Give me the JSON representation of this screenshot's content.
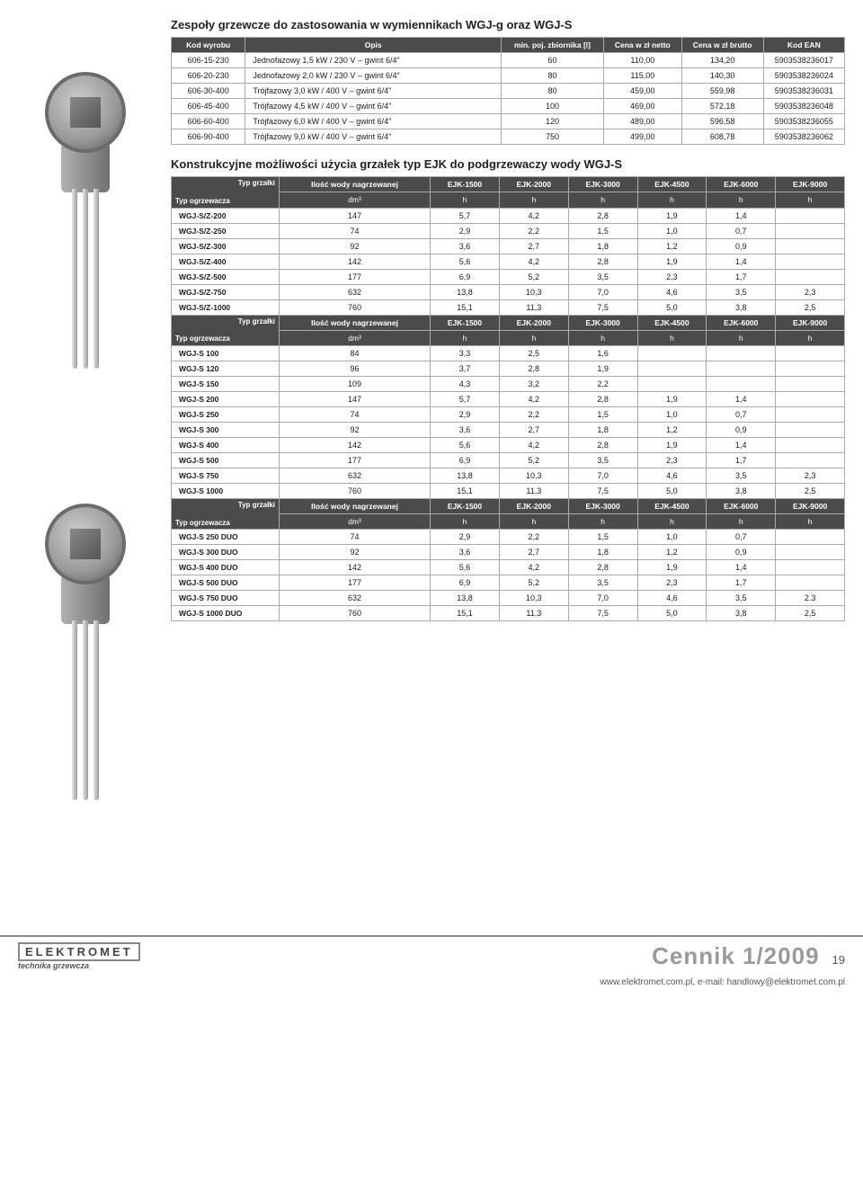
{
  "title": "Zespoły grzewcze do zastosowania w wymiennikach WGJ-g oraz WGJ-S",
  "tbl1": {
    "headers": [
      "Kod wyrobu",
      "Opis",
      "min. poj. zbiornika [l]",
      "Cena w zł netto",
      "Cena w zł brutto",
      "Kod EAN"
    ],
    "rows": [
      [
        "606-15-230",
        "Jednofazowy 1,5 kW / 230 V – gwint 6/4\"",
        "60",
        "110,00",
        "134,20",
        "5903538236017"
      ],
      [
        "606-20-230",
        "Jednofazowy 2,0 kW / 230 V – gwint 6/4\"",
        "80",
        "115,00",
        "140,30",
        "5903538236024"
      ],
      [
        "606-30-400",
        "Trójfazowy 3,0 kW / 400 V – gwint 6/4\"",
        "80",
        "459,00",
        "559,98",
        "5903538236031"
      ],
      [
        "606-45-400",
        "Trójfazowy 4,5 kW / 400 V – gwint 6/4\"",
        "100",
        "469,00",
        "572,18",
        "5903538236048"
      ],
      [
        "606-60-400",
        "Trójfazowy 6,0 kW / 400 V – gwint 6/4\"",
        "120",
        "489,00",
        "596,58",
        "5903538236055"
      ],
      [
        "606-90-400",
        "Trójfazowy 9,0 kW / 400 V – gwint 6/4\"",
        "750",
        "499,00",
        "608,78",
        "5903538236062"
      ]
    ]
  },
  "title2": "Konstrukcyjne możliwości użycia grzałek typ EJK do podgrzewaczy wody WGJ-S",
  "ejk_header": {
    "corner_top": "Typ grzałki",
    "corner_bot": "Typ ogrzewacza",
    "sub1": "Ilość wody nagrzewanej",
    "sub2": "dm³",
    "cols": [
      "EJK-1500",
      "EJK-2000",
      "EJK-3000",
      "EJK-4500",
      "EJK-6000",
      "EJK-9000"
    ],
    "unit": "h"
  },
  "group1": [
    [
      "WGJ-S/Z-200",
      "147",
      "5,7",
      "4,2",
      "2,8",
      "1,9",
      "1,4",
      ""
    ],
    [
      "WGJ-S/Z-250",
      "74",
      "2,9",
      "2,2",
      "1,5",
      "1,0",
      "0,7",
      ""
    ],
    [
      "WGJ-S/Z-300",
      "92",
      "3,6",
      "2,7",
      "1,8",
      "1,2",
      "0,9",
      ""
    ],
    [
      "WGJ-S/Z-400",
      "142",
      "5,6",
      "4,2",
      "2,8",
      "1,9",
      "1,4",
      ""
    ],
    [
      "WGJ-S/Z-500",
      "177",
      "6,9",
      "5,2",
      "3,5",
      "2,3",
      "1,7",
      ""
    ],
    [
      "WGJ-S/Z-750",
      "632",
      "13,8",
      "10,3",
      "7,0",
      "4,6",
      "3,5",
      "2,3"
    ],
    [
      "WGJ-S/Z-1000",
      "760",
      "15,1",
      "11,3",
      "7,5",
      "5,0",
      "3,8",
      "2,5"
    ]
  ],
  "group2": [
    [
      "WGJ-S 100",
      "84",
      "3,3",
      "2,5",
      "1,6",
      "",
      "",
      ""
    ],
    [
      "WGJ-S 120",
      "96",
      "3,7",
      "2,8",
      "1,9",
      "",
      "",
      ""
    ],
    [
      "WGJ-S 150",
      "109",
      "4,3",
      "3,2",
      "2,2",
      "",
      "",
      ""
    ],
    [
      "WGJ-S 200",
      "147",
      "5,7",
      "4,2",
      "2,8",
      "1,9",
      "1,4",
      ""
    ],
    [
      "WGJ-S 250",
      "74",
      "2,9",
      "2,2",
      "1,5",
      "1,0",
      "0,7",
      ""
    ],
    [
      "WGJ-S 300",
      "92",
      "3,6",
      "2,7",
      "1,8",
      "1,2",
      "0,9",
      ""
    ],
    [
      "WGJ-S 400",
      "142",
      "5,6",
      "4,2",
      "2,8",
      "1,9",
      "1,4",
      ""
    ],
    [
      "WGJ-S 500",
      "177",
      "6,9",
      "5,2",
      "3,5",
      "2,3",
      "1,7",
      ""
    ],
    [
      "WGJ-S 750",
      "632",
      "13,8",
      "10,3",
      "7,0",
      "4,6",
      "3,5",
      "2,3"
    ],
    [
      "WGJ-S 1000",
      "760",
      "15,1",
      "11,3",
      "7,5",
      "5,0",
      "3,8",
      "2,5"
    ]
  ],
  "group3": [
    [
      "WGJ-S 250 DUO",
      "74",
      "2,9",
      "2,2",
      "1,5",
      "1,0",
      "0,7",
      ""
    ],
    [
      "WGJ-S 300 DUO",
      "92",
      "3,6",
      "2,7",
      "1,8",
      "1,2",
      "0,9",
      ""
    ],
    [
      "WGJ-S 400 DUO",
      "142",
      "5,6",
      "4,2",
      "2,8",
      "1,9",
      "1,4",
      ""
    ],
    [
      "WGJ-S 500 DUO",
      "177",
      "6,9",
      "5,2",
      "3,5",
      "2,3",
      "1,7",
      ""
    ],
    [
      "WGJ-S 750 DUO",
      "632",
      "13,8",
      "10,3",
      "7,0",
      "4,6",
      "3,5",
      "2.3"
    ],
    [
      "WGJ-S 1000 DUO",
      "760",
      "15,1",
      "11,3",
      "7,5",
      "5,0",
      "3,8",
      "2,5"
    ]
  ],
  "footer": {
    "brand": "ELEKTROMET",
    "sub": "technika grzewcza",
    "cennik": "Cennik 1/2009",
    "page": "19",
    "url": "www.elektromet.com.pl, e-mail: handlowy@elektromet.com.pl"
  }
}
